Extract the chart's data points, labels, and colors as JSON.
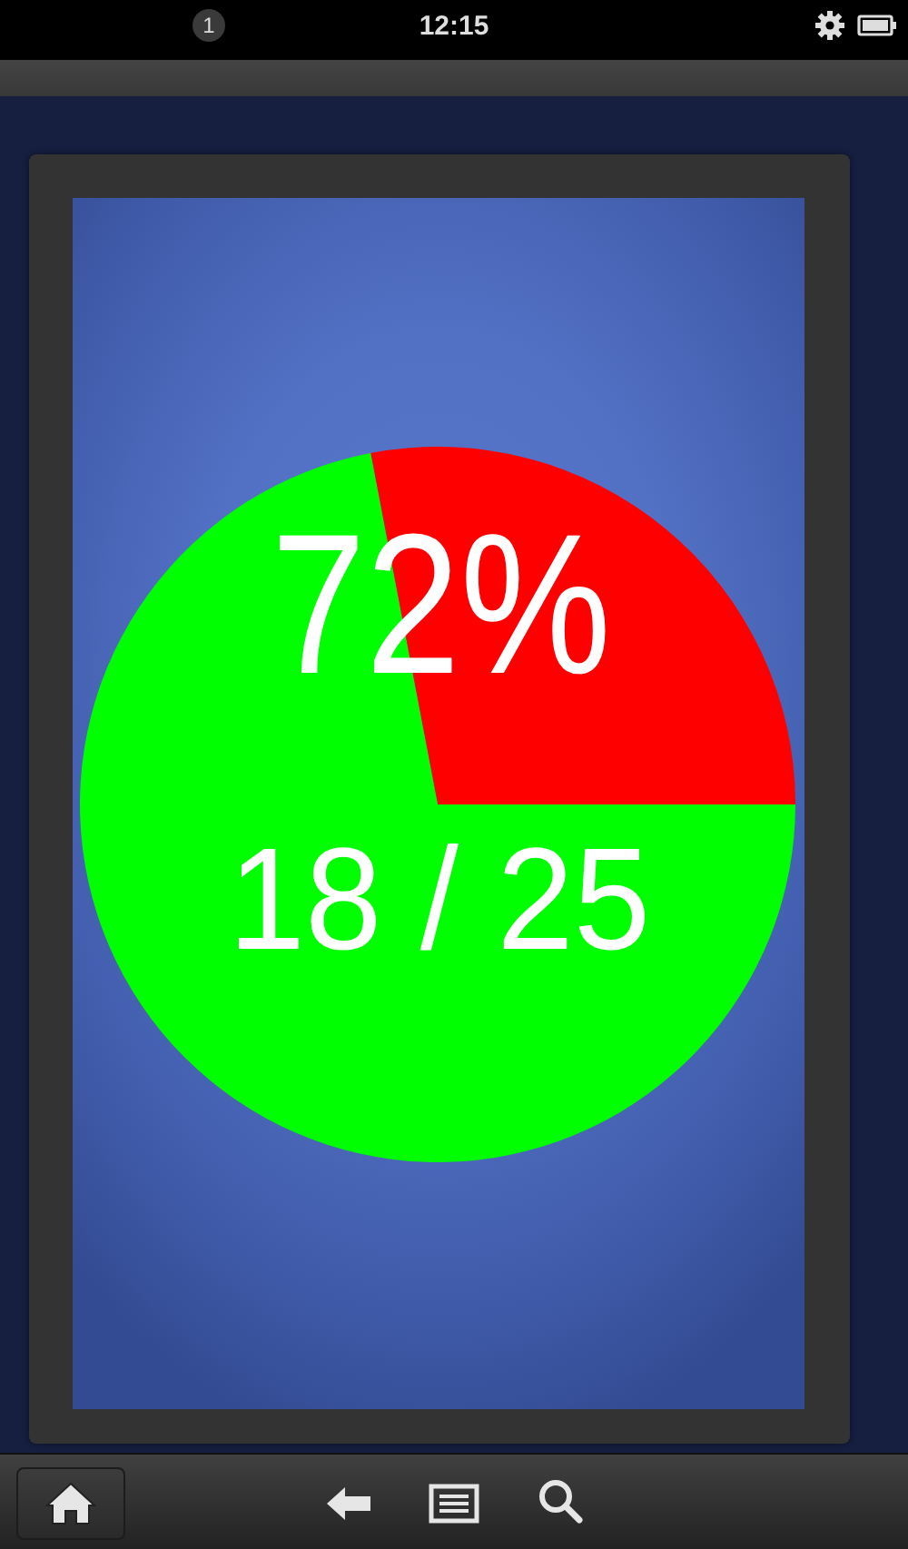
{
  "chart_data": {
    "type": "pie",
    "categories": [
      null,
      null
    ],
    "values": [
      28,
      72
    ],
    "colors": [
      "#ff0000",
      "#00ff00"
    ],
    "annotations": [
      "72%",
      "18 / 25",
      "12:15",
      "1"
    ]
  }
}
